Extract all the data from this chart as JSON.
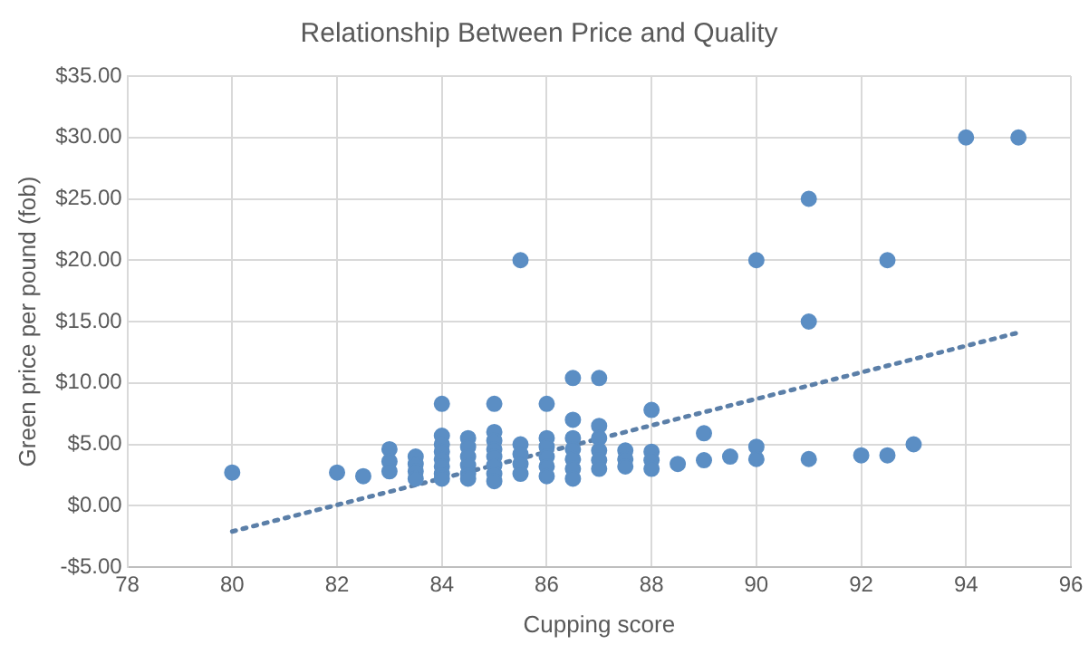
{
  "chart_data": {
    "type": "scatter",
    "title": "Relationship Between Price and Quality",
    "xlabel": "Cupping score",
    "ylabel": "Green price per pound (fob)",
    "xlim": [
      78,
      96
    ],
    "xticks": [
      78,
      80,
      82,
      84,
      86,
      88,
      90,
      92,
      94,
      96
    ],
    "ylim": [
      -5,
      35
    ],
    "yticks": [
      {
        "value": -5,
        "label": "-$5.00"
      },
      {
        "value": 0,
        "label": "$0.00"
      },
      {
        "value": 5,
        "label": "$5.00"
      },
      {
        "value": 10,
        "label": "$10.00"
      },
      {
        "value": 15,
        "label": "$15.00"
      },
      {
        "value": 20,
        "label": "$20.00"
      },
      {
        "value": 25,
        "label": "$25.00"
      },
      {
        "value": 30,
        "label": "$30.00"
      },
      {
        "value": 35,
        "label": "$35.00"
      }
    ],
    "grid": true,
    "legend": false,
    "marker": "circle",
    "series": [
      {
        "type": "scatter",
        "color": "#5b8ec4",
        "x": [
          80,
          82,
          82.5,
          83,
          83,
          83,
          83.5,
          83.5,
          83.5,
          83.5,
          84,
          84,
          84,
          84,
          84,
          84,
          84,
          84,
          84.5,
          84.5,
          84.5,
          84.5,
          84.5,
          84.5,
          85,
          85,
          85,
          85,
          85,
          85,
          85,
          85,
          85.5,
          85.5,
          85.5,
          85.5,
          85.5,
          86,
          86,
          86,
          86,
          86,
          86,
          86.5,
          86.5,
          86.5,
          86.5,
          86.5,
          86.5,
          86.5,
          87,
          87,
          87,
          87,
          87,
          87,
          87.5,
          87.5,
          87.5,
          88,
          88,
          88,
          88,
          88.5,
          89,
          89,
          89.5,
          90,
          90,
          90,
          91,
          91,
          91,
          92,
          92.5,
          92.5,
          93,
          94,
          95
        ],
        "values": [
          2.7,
          2.7,
          2.4,
          4.6,
          3.6,
          2.8,
          4.0,
          3.4,
          2.8,
          2.2,
          8.3,
          5.7,
          5.0,
          4.4,
          3.8,
          3.2,
          2.6,
          2.2,
          5.5,
          4.8,
          4.0,
          3.3,
          2.6,
          2.2,
          8.3,
          6.0,
          5.3,
          4.6,
          4.0,
          3.3,
          2.6,
          2.0,
          20,
          5.0,
          4.2,
          3.4,
          2.6,
          8.3,
          5.5,
          4.8,
          4.0,
          3.2,
          2.4,
          10.4,
          7.0,
          5.5,
          4.6,
          3.8,
          3.0,
          2.2,
          10.4,
          6.5,
          5.5,
          4.5,
          3.7,
          3.0,
          4.5,
          3.8,
          3.2,
          7.8,
          4.4,
          3.7,
          3.0,
          3.4,
          5.9,
          3.7,
          4.0,
          20,
          4.8,
          3.8,
          25,
          15,
          3.8,
          4.1,
          4.1,
          20,
          5.0,
          30,
          30
        ]
      },
      {
        "type": "line",
        "color": "#5b7fa8",
        "line_style": "dotted",
        "marker": "none",
        "x": [
          80,
          95
        ],
        "values": [
          -2.1,
          14.1
        ]
      }
    ]
  }
}
